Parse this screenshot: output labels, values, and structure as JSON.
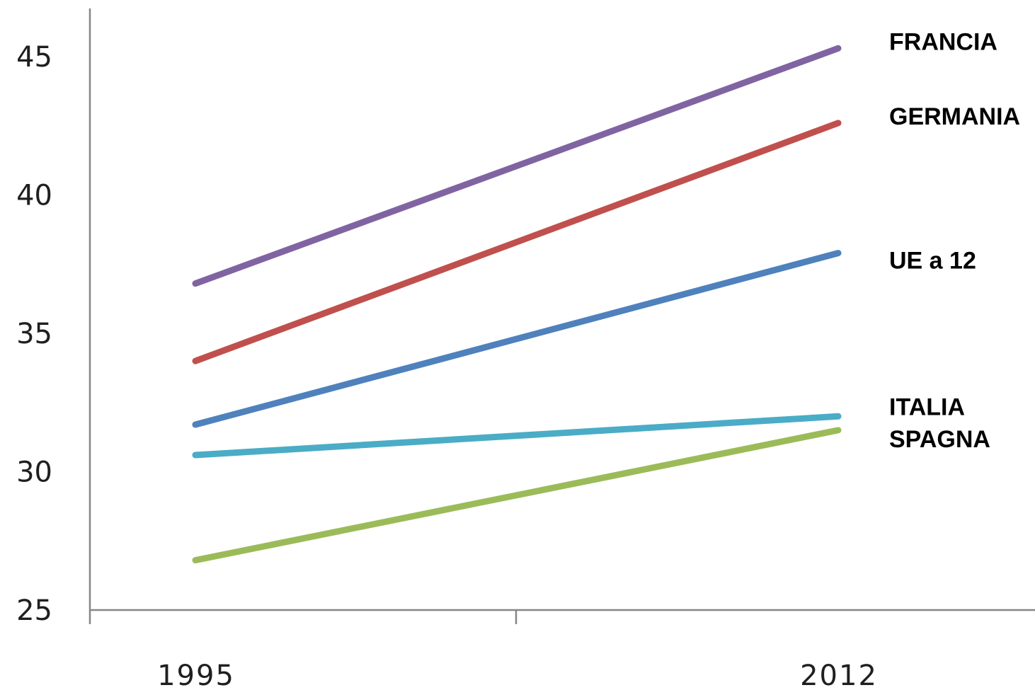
{
  "chart_data": {
    "type": "line",
    "x": [
      "1995",
      "2012"
    ],
    "ylim": [
      25,
      45
    ],
    "yticks": [
      25,
      30,
      35,
      40,
      45
    ],
    "grid": false,
    "legend": "labels at right end of each line",
    "series": [
      {
        "name": "FRANCIA",
        "values": [
          36.8,
          45.3
        ],
        "color": "#8064a2"
      },
      {
        "name": "GERMANIA",
        "values": [
          34.0,
          42.6
        ],
        "color": "#c0504d"
      },
      {
        "name": "UE a 12",
        "values": [
          31.7,
          37.9
        ],
        "color": "#4f81bd"
      },
      {
        "name": "ITALIA",
        "values": [
          30.6,
          32.0
        ],
        "color": "#4bacc6"
      },
      {
        "name": "SPAGNA",
        "values": [
          26.8,
          31.5
        ],
        "color": "#9bbb59"
      }
    ]
  }
}
